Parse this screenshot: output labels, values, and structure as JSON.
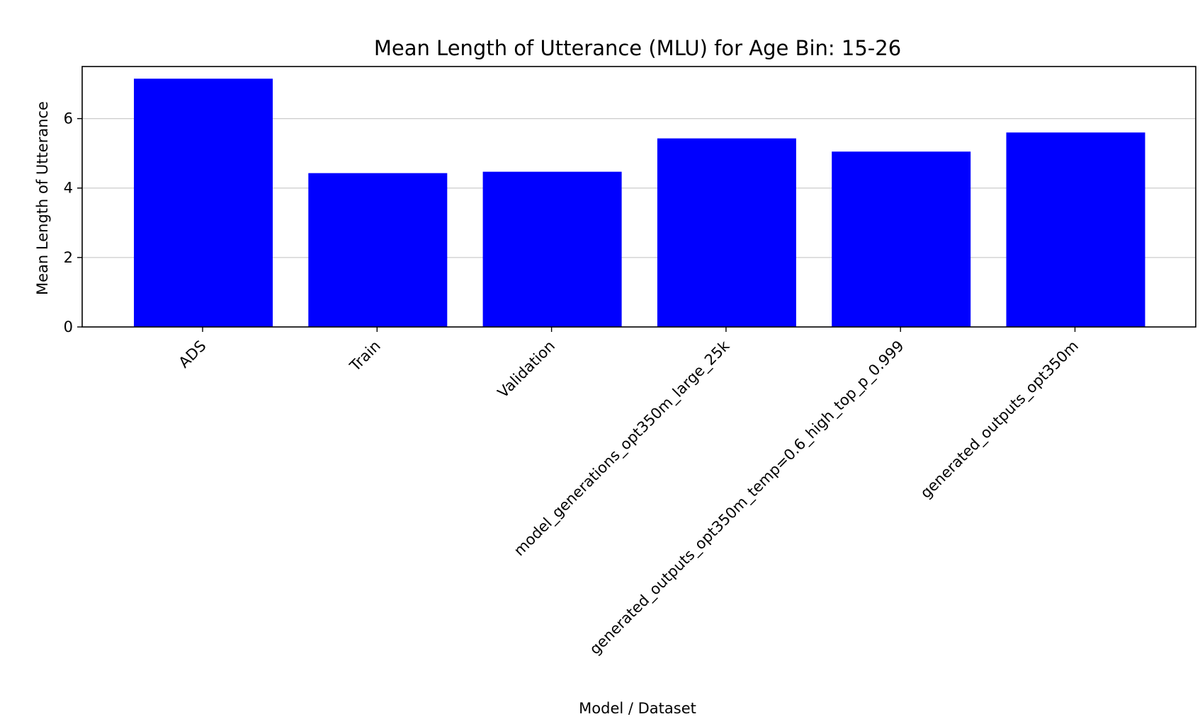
{
  "chart_data": {
    "type": "bar",
    "title": "Mean Length of Utterance (MLU) for Age Bin: 15-26",
    "xlabel": "Model / Dataset",
    "ylabel": "Mean Length of Utterance",
    "categories": [
      "ADS",
      "Train",
      "Validation",
      "model_generations_opt350m_large_25k",
      "generated_outputs_opt350m_temp=0.6_high_top_p_0.999",
      "generated_outputs_opt350m"
    ],
    "values": [
      7.15,
      4.43,
      4.47,
      5.43,
      5.05,
      5.6
    ],
    "ylim": [
      0,
      7.5
    ],
    "yticks": [
      0,
      2,
      4,
      6
    ],
    "grid": "y",
    "bar_color": "#0000ff",
    "legend": "none"
  }
}
